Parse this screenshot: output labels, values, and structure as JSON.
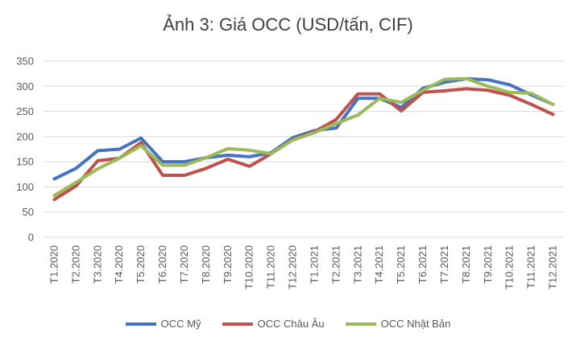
{
  "chart_data": {
    "type": "line",
    "title": "Ảnh 3: Giá OCC (USD/tấn, CIF)",
    "categories": [
      "T1.2020",
      "T2.2020",
      "T3.2020",
      "T4.2020",
      "T5.2020",
      "T6.2020",
      "T7.2020",
      "T8.2020",
      "T9.2020",
      "T10.2020",
      "T11.2020",
      "T12.2020",
      "T1.2021",
      "T2.2021",
      "T3.2021",
      "T4.2021",
      "T5.2021",
      "T6.2021",
      "T7.2021",
      "T8.2021",
      "T9.2021",
      "T10.2021",
      "T11.2021",
      "T12.2021"
    ],
    "ylim": [
      0,
      350
    ],
    "yticks": [
      0,
      50,
      100,
      150,
      200,
      250,
      300,
      350
    ],
    "grid": true,
    "legend_position": "bottom",
    "series": [
      {
        "name": "OCC Mỹ",
        "color": "#4472C4",
        "values": [
          116,
          137,
          172,
          175,
          197,
          150,
          150,
          158,
          163,
          160,
          168,
          198,
          212,
          217,
          276,
          276,
          258,
          296,
          308,
          315,
          313,
          303,
          283,
          264
        ]
      },
      {
        "name": "OCC Châu Âu",
        "color": "#C0504D",
        "values": [
          75,
          102,
          152,
          157,
          188,
          123,
          123,
          137,
          155,
          141,
          166,
          194,
          210,
          234,
          285,
          285,
          251,
          288,
          291,
          295,
          292,
          282,
          264,
          244
        ]
      },
      {
        "name": "OCC Nhật Bản",
        "color": "#9BBB59",
        "values": [
          83,
          109,
          136,
          157,
          182,
          143,
          143,
          158,
          176,
          173,
          166,
          193,
          208,
          226,
          243,
          276,
          268,
          292,
          314,
          315,
          300,
          288,
          286,
          264
        ]
      }
    ]
  }
}
